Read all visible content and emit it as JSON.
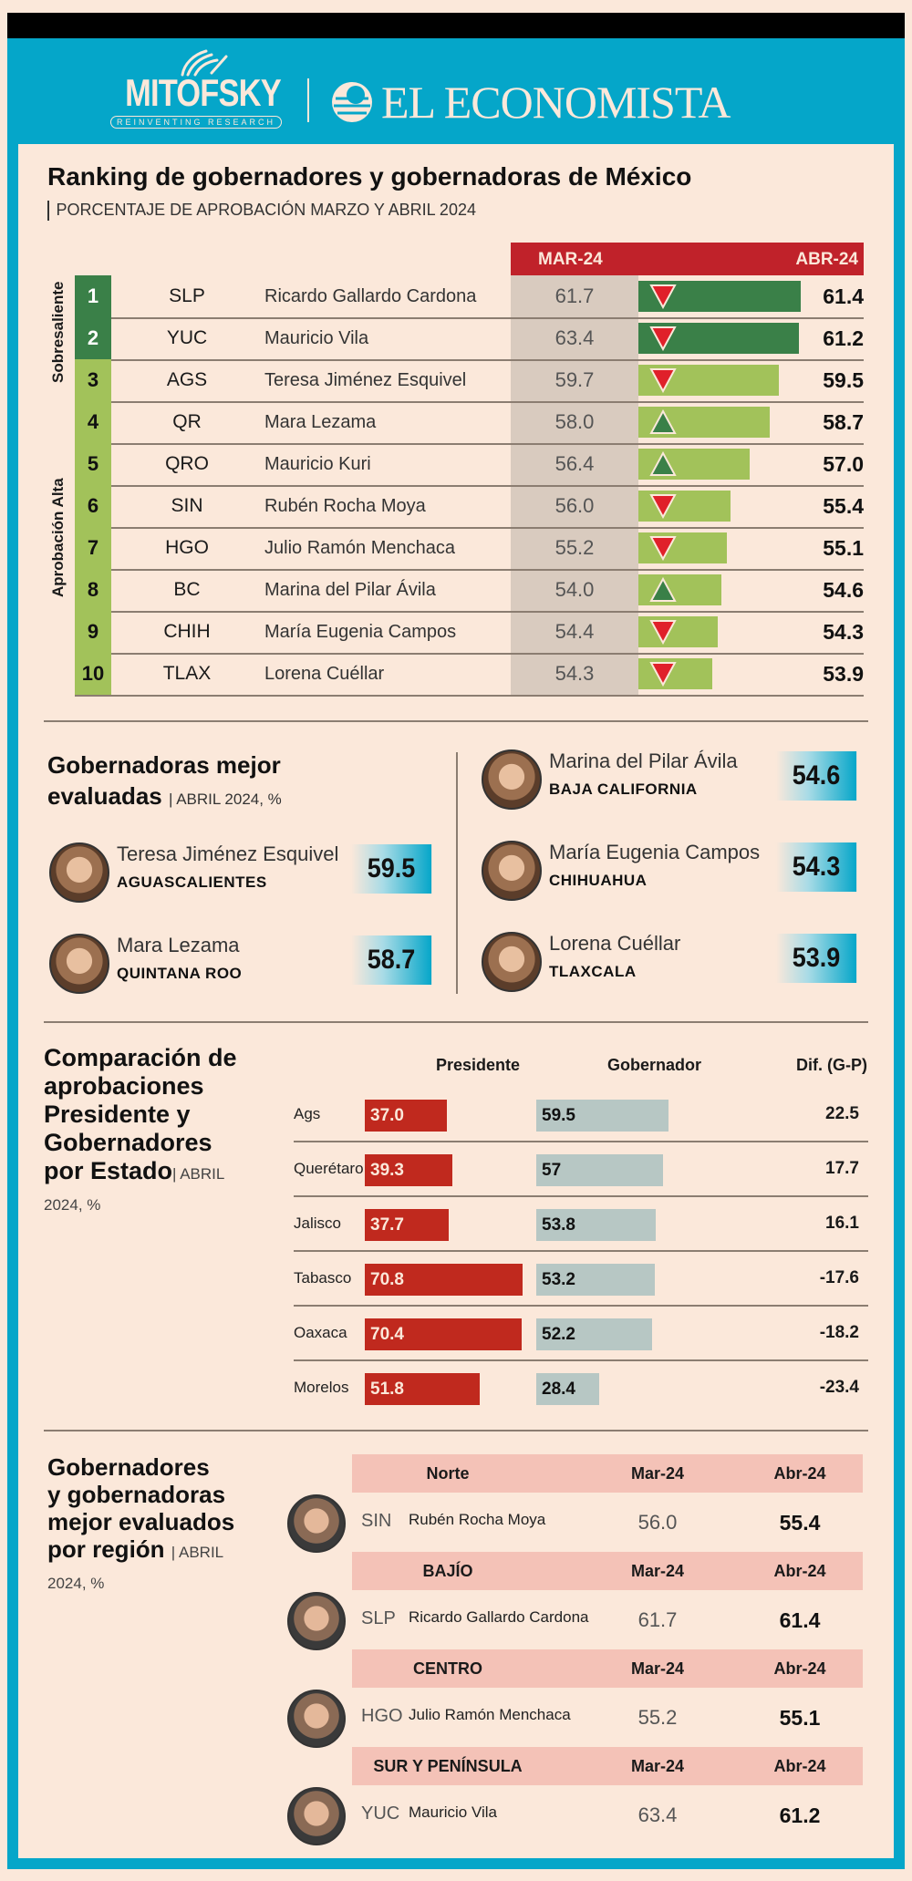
{
  "header": {
    "brand_left": "MITOFSKY",
    "brand_left_tagline": "REINVENTING RESEARCH",
    "brand_right": "EL ECONOMISTA",
    "colors": {
      "frame_blue": "#05a6c9",
      "top_bar": "#000000",
      "background": "#fbe8da"
    }
  },
  "ranking": {
    "title": "Ranking de gobernadores y gobernadoras de México",
    "subtitle": "PORCENTAJE DE APROBACIÓN MARZO Y ABRIL 2024",
    "col_mar": "MAR-24",
    "col_abr": "ABR-24",
    "group_labels": [
      "Sobresaliente",
      "Aprobación Alta"
    ],
    "colors": {
      "sobresaliente": "#3a8048",
      "alta": "#a2c25a",
      "down": "#e0202a",
      "up": "#3a8048",
      "header": "#c0222a"
    },
    "rows": [
      {
        "rank": "1",
        "state": "SLP",
        "name": "Ricardo Gallardo Cardona",
        "mar": "61.7",
        "abr": "61.4",
        "abr_value": 61.4,
        "trend": "down",
        "group": "Sobresaliente"
      },
      {
        "rank": "2",
        "state": "YUC",
        "name": "Mauricio Vila",
        "mar": "63.4",
        "abr": "61.2",
        "abr_value": 61.2,
        "trend": "down",
        "group": "Sobresaliente"
      },
      {
        "rank": "3",
        "state": "AGS",
        "name": "Teresa Jiménez Esquivel",
        "mar": "59.7",
        "abr": "59.5",
        "abr_value": 59.5,
        "trend": "down",
        "group": "Aprobación Alta"
      },
      {
        "rank": "4",
        "state": "QR",
        "name": "Mara Lezama",
        "mar": "58.0",
        "abr": "58.7",
        "abr_value": 58.7,
        "trend": "up",
        "group": "Aprobación Alta"
      },
      {
        "rank": "5",
        "state": "QRO",
        "name": "Mauricio Kuri",
        "mar": "56.4",
        "abr": "57.0",
        "abr_value": 57.0,
        "trend": "up",
        "group": "Aprobación Alta"
      },
      {
        "rank": "6",
        "state": "SIN",
        "name": "Rubén Rocha Moya",
        "mar": "56.0",
        "abr": "55.4",
        "abr_value": 55.4,
        "trend": "down",
        "group": "Aprobación Alta"
      },
      {
        "rank": "7",
        "state": "HGO",
        "name": "Julio Ramón Menchaca",
        "mar": "55.2",
        "abr": "55.1",
        "abr_value": 55.1,
        "trend": "down",
        "group": "Aprobación Alta"
      },
      {
        "rank": "8",
        "state": "BC",
        "name": "Marina del Pilar Ávila",
        "mar": "54.0",
        "abr": "54.6",
        "abr_value": 54.6,
        "trend": "up",
        "group": "Aprobación Alta"
      },
      {
        "rank": "9",
        "state": "CHIH",
        "name": "María Eugenia Campos",
        "mar": "54.4",
        "abr": "54.3",
        "abr_value": 54.3,
        "trend": "down",
        "group": "Aprobación Alta"
      },
      {
        "rank": "10",
        "state": "TLAX",
        "name": "Lorena Cuéllar",
        "mar": "54.3",
        "abr": "53.9",
        "abr_value": 53.9,
        "trend": "down",
        "group": "Aprobación Alta"
      }
    ]
  },
  "gobernadoras": {
    "title_line1": "Gobernadoras mejor",
    "title_line2": "evaluadas",
    "subtitle": "ABRIL 2024, %",
    "items": [
      {
        "name": "Teresa Jiménez Esquivel",
        "state": "AGUASCALIENTES",
        "score": "59.5"
      },
      {
        "name": "Mara Lezama",
        "state": "QUINTANA ROO",
        "score": "58.7"
      },
      {
        "name": "Marina del Pilar Ávila",
        "state": "BAJA CALIFORNIA",
        "score": "54.6"
      },
      {
        "name": "María Eugenia Campos",
        "state": "CHIHUAHUA",
        "score": "54.3"
      },
      {
        "name": "Lorena Cuéllar",
        "state": "TLAXCALA",
        "score": "53.9"
      }
    ]
  },
  "comparacion": {
    "title_lines": [
      "Comparación de",
      "aprobaciones",
      "Presidente y",
      "Gobernadores",
      "por Estado"
    ],
    "subtitle_a": "ABRIL",
    "subtitle_b": "2024, %",
    "col_presidente": "Presidente",
    "col_gobernador": "Gobernador",
    "col_dif": "Dif. (G-P)",
    "colors": {
      "presidente": "#c0291e",
      "gobernador": "#b7c7c4"
    },
    "rows": [
      {
        "state": "Ags",
        "presidente": "37.0",
        "presidente_value": 37.0,
        "gobernador": "59.5",
        "gobernador_value": 59.5,
        "dif": "22.5"
      },
      {
        "state": "Querétaro",
        "presidente": "39.3",
        "presidente_value": 39.3,
        "gobernador": "57",
        "gobernador_value": 57,
        "dif": "17.7"
      },
      {
        "state": "Jalisco",
        "presidente": "37.7",
        "presidente_value": 37.7,
        "gobernador": "53.8",
        "gobernador_value": 53.8,
        "dif": "16.1"
      },
      {
        "state": "Tabasco",
        "presidente": "70.8",
        "presidente_value": 70.8,
        "gobernador": "53.2",
        "gobernador_value": 53.2,
        "dif": "-17.6"
      },
      {
        "state": "Oaxaca",
        "presidente": "70.4",
        "presidente_value": 70.4,
        "gobernador": "52.2",
        "gobernador_value": 52.2,
        "dif": "-18.2"
      },
      {
        "state": "Morelos",
        "presidente": "51.8",
        "presidente_value": 51.8,
        "gobernador": "28.4",
        "gobernador_value": 28.4,
        "dif": "-23.4"
      }
    ]
  },
  "regiones": {
    "title_lines": [
      "Gobernadores",
      "y gobernadoras",
      "mejor evaluados",
      "por región"
    ],
    "subtitle_a": "ABRIL",
    "subtitle_b": "2024, %",
    "col_mar": "Mar-24",
    "col_abr": "Abr-24",
    "items": [
      {
        "region": "Norte",
        "state": "SIN",
        "name": "Rubén Rocha Moya",
        "mar": "56.0",
        "abr": "55.4"
      },
      {
        "region": "BAJÍO",
        "state": "SLP",
        "name": "Ricardo Gallardo Cardona",
        "mar": "61.7",
        "abr": "61.4"
      },
      {
        "region": "CENTRO",
        "state": "HGO",
        "name": "Julio Ramón Menchaca",
        "mar": "55.2",
        "abr": "55.1"
      },
      {
        "region": "SUR Y PENÍNSULA",
        "state": "YUC",
        "name": "Mauricio Vila",
        "mar": "63.4",
        "abr": "61.2"
      }
    ]
  },
  "chart_data": [
    {
      "type": "bar",
      "title": "Ranking de gobernadores y gobernadoras de México",
      "subtitle": "PORCENTAJE DE APROBACIÓN MARZO Y ABRIL 2024",
      "categories": [
        "SLP",
        "YUC",
        "AGS",
        "QR",
        "QRO",
        "SIN",
        "HGO",
        "BC",
        "CHIH",
        "TLAX"
      ],
      "series": [
        {
          "name": "MAR-24",
          "values": [
            61.7,
            63.4,
            59.7,
            58.0,
            56.4,
            56.0,
            55.2,
            54.0,
            54.4,
            54.3
          ]
        },
        {
          "name": "ABR-24",
          "values": [
            61.4,
            61.2,
            59.5,
            58.7,
            57.0,
            55.4,
            55.1,
            54.6,
            54.3,
            53.9
          ]
        }
      ],
      "orientation": "horizontal"
    },
    {
      "type": "bar",
      "title": "Comparación de aprobaciones Presidente y Gobernadores por Estado",
      "subtitle": "ABRIL 2024, %",
      "categories": [
        "Ags",
        "Querétaro",
        "Jalisco",
        "Tabasco",
        "Oaxaca",
        "Morelos"
      ],
      "series": [
        {
          "name": "Presidente",
          "values": [
            37.0,
            39.3,
            37.7,
            70.8,
            70.4,
            51.8
          ]
        },
        {
          "name": "Gobernador",
          "values": [
            59.5,
            57,
            53.8,
            53.2,
            52.2,
            28.4
          ]
        },
        {
          "name": "Dif. (G-P)",
          "values": [
            22.5,
            17.7,
            16.1,
            -17.6,
            -18.2,
            -23.4
          ]
        }
      ],
      "orientation": "horizontal"
    }
  ]
}
